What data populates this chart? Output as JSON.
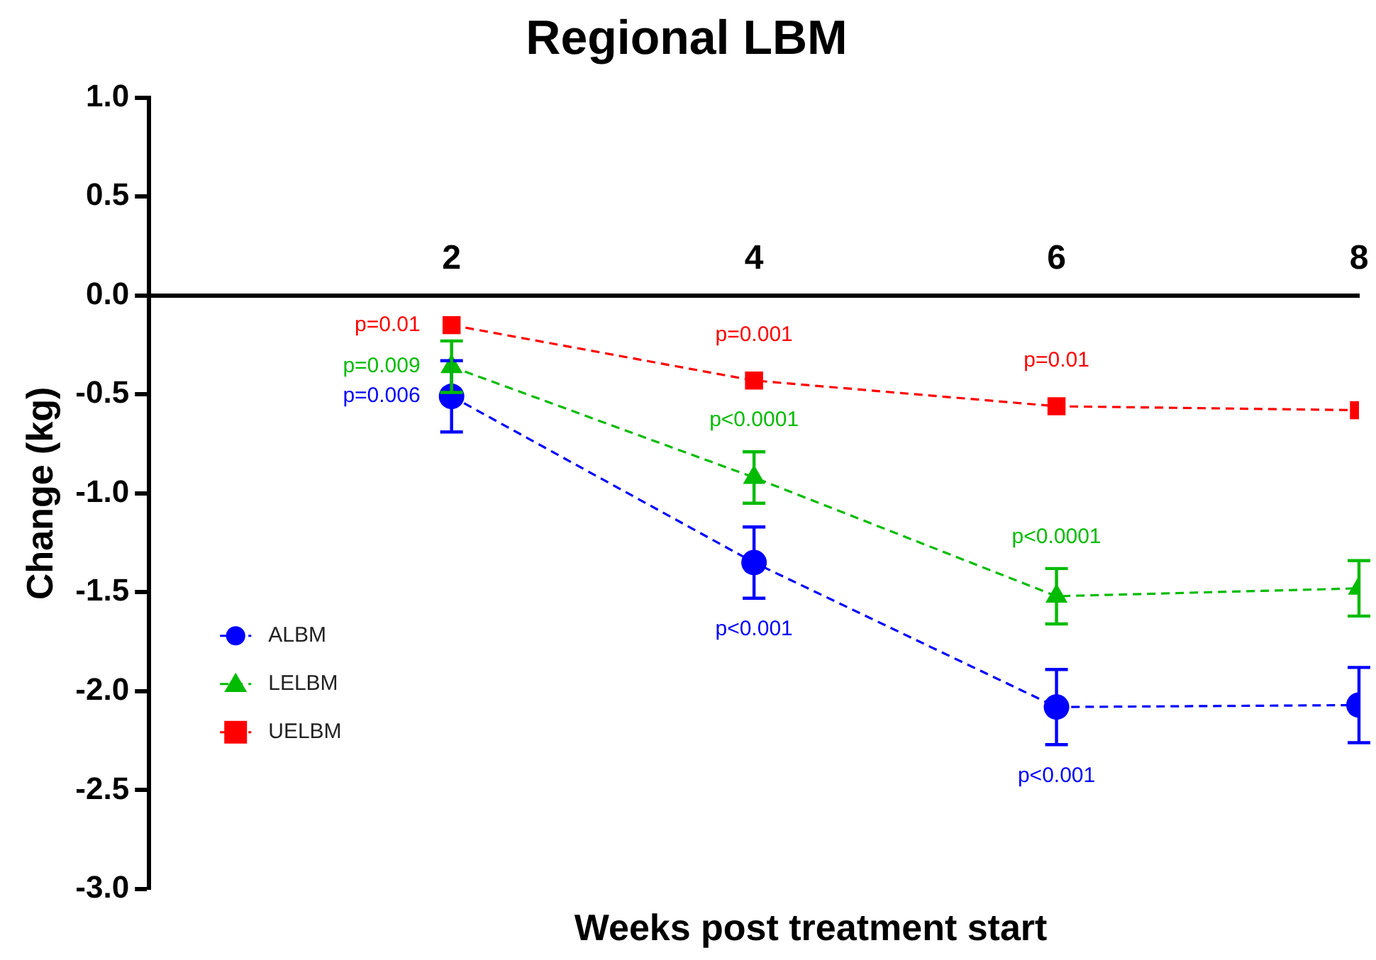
{
  "chart_data": {
    "type": "line",
    "title": "Regional LBM",
    "xlabel": "Weeks post treatment start",
    "ylabel": "Change (kg)",
    "x": [
      2,
      4,
      6,
      8
    ],
    "xlim": [
      0,
      8
    ],
    "xticks": [
      2,
      4,
      6,
      8
    ],
    "ylim": [
      -3,
      1
    ],
    "yticks": [
      {
        "value": -3,
        "label": "-3.0"
      },
      {
        "value": -2.5,
        "label": "-2.5"
      },
      {
        "value": -2,
        "label": "-2.0"
      },
      {
        "value": -1.5,
        "label": "-1.5"
      },
      {
        "value": -1,
        "label": "-1.0"
      },
      {
        "value": -0.5,
        "label": "-0.5"
      },
      {
        "value": 0,
        "label": "0.0"
      },
      {
        "value": 0.5,
        "label": "0.5"
      },
      {
        "value": 1,
        "label": "1.0"
      }
    ],
    "annotations": [
      {
        "text": "p=0.006",
        "x": 2,
        "y": -0.51
      },
      {
        "text": "p<0.001",
        "x": 4,
        "y": -1.35
      },
      {
        "text": "p<0.001",
        "x": 6,
        "y": -2.08
      },
      {
        "text": "p=0.009",
        "x": 2,
        "y": -0.36
      },
      {
        "text": "p<0.0001",
        "x": 4,
        "y": -0.92
      },
      {
        "text": "p<0.0001",
        "x": 6,
        "y": -1.52
      },
      {
        "text": "p=0.01",
        "x": 2,
        "y": -0.15
      },
      {
        "text": "p=0.001",
        "x": 4,
        "y": -0.43
      },
      {
        "text": "p=0.01",
        "x": 6,
        "y": -0.56
      }
    ],
    "grid": false,
    "legend": "left",
    "line_style": "dashed",
    "series": [
      {
        "name": "ALBM",
        "color": "#0000ff",
        "marker": "circle",
        "values": [
          -0.51,
          -1.35,
          -2.08,
          -2.07
        ],
        "errors": [
          0.18,
          0.18,
          0.19,
          0.19
        ]
      },
      {
        "name": "LELBM",
        "color": "#00bb00",
        "marker": "triangle",
        "values": [
          -0.36,
          -0.92,
          -1.52,
          -1.48
        ],
        "errors": [
          0.13,
          0.13,
          0.14,
          0.14
        ]
      },
      {
        "name": "UELBM",
        "color": "#ff0000",
        "marker": "square",
        "values": [
          -0.15,
          -0.43,
          -0.56,
          -0.58
        ]
      }
    ]
  }
}
